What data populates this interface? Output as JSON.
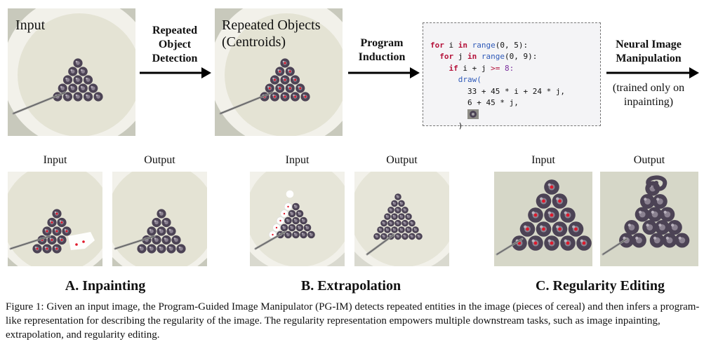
{
  "top_row": {
    "input_label": "Input",
    "step1_label": "Repeated Object Detection",
    "detected_label_line1": "Repeated Objects",
    "detected_label_line2": "(Centroids)",
    "step2_label": "Program Induction",
    "step3_label": "Neural Image Manipulation",
    "step3_note_line1": "(trained only on",
    "step3_note_line2": "inpainting)"
  },
  "code_block": {
    "line1": {
      "kw1": "for",
      "var": " i ",
      "kw2": "in",
      "fn": " range",
      "args": "(0, 5):"
    },
    "line2": {
      "kw1": "for",
      "var": " j ",
      "kw2": "in",
      "fn": " range",
      "args": "(0, 9):"
    },
    "line3": {
      "kw": "if",
      "expr": " i + j ",
      "op": ">=",
      "num": " 8:"
    },
    "line4": "draw(",
    "line5": "33 + 45 * i + 24 * j,",
    "line6": "6 + 45 * j,",
    "line8": ")"
  },
  "panels": {
    "a_input": "Input",
    "a_output": "Output",
    "b_input": "Input",
    "b_output": "Output",
    "c_input": "Input",
    "c_output": "Output"
  },
  "sections": {
    "a": "A. Inpainting",
    "b": "B. Extrapolation",
    "c": "C. Regularity Editing"
  },
  "caption": "Figure 1: Given an input image, the Program-Guided Image Manipulator (PG-IM) detects repeated entities in the image (pieces of cereal) and then infers a program-like representation for describing the regularity of the image. The regularity representation empowers multiple downstream tasks, such as image inpainting, extrapolation, and regularity editing.",
  "colors": {
    "plate_bg": "#e7e6d8",
    "plate_rim": "#f3f2ea",
    "table": "#c8c9bc",
    "cereal": "#4c4355",
    "centroid": "#e0182a",
    "arrow": "#000000"
  }
}
